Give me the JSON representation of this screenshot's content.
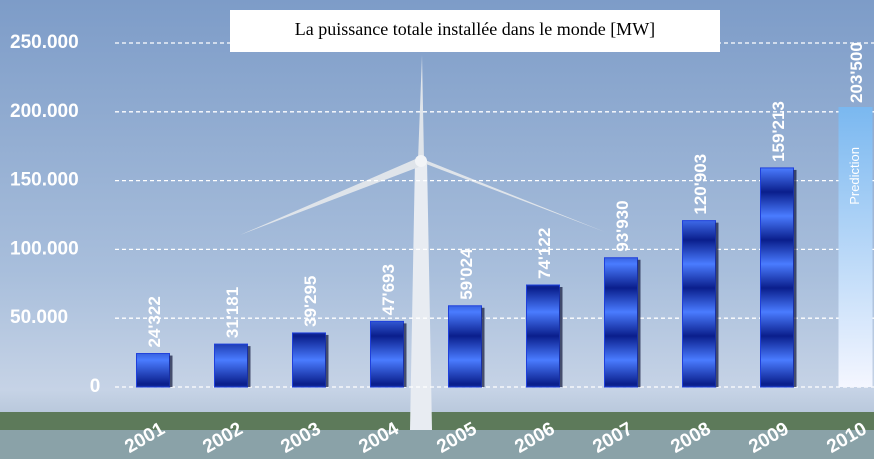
{
  "chart_data": {
    "type": "bar",
    "title": "La puissance totale installée dans le monde [MW]",
    "categories": [
      "2001",
      "2002",
      "2003",
      "2004",
      "2005",
      "2006",
      "2007",
      "2008",
      "2009",
      "2010"
    ],
    "values": [
      24322,
      31181,
      39295,
      47693,
      59024,
      74122,
      93930,
      120903,
      159213,
      203500
    ],
    "value_labels": [
      "24'322",
      "31'181",
      "39'295",
      "47'693",
      "59'024",
      "74'122",
      "93'930",
      "120'903",
      "159'213",
      "203'500"
    ],
    "colors": [
      "#1e3fdc",
      "#1e3fdc",
      "#1e3fdc",
      "#1e3fdc",
      "#1e3fdc",
      "#1e3fdc",
      "#1e3fdc",
      "#1e3fdc",
      "#1e3fdc",
      "#8cc6f4"
    ],
    "annotation": "Prediction",
    "ylim": [
      0,
      250000
    ],
    "yticks": [
      0,
      {
        "value": 50000,
        "label": "50.000"
      },
      {
        "value": 100000,
        "label": "100.000"
      },
      {
        "value": 150000,
        "label": "150.000"
      },
      {
        "value": 200000,
        "label": "200.000"
      },
      {
        "value": 250000,
        "label": "250.000"
      }
    ],
    "grid": true
  }
}
